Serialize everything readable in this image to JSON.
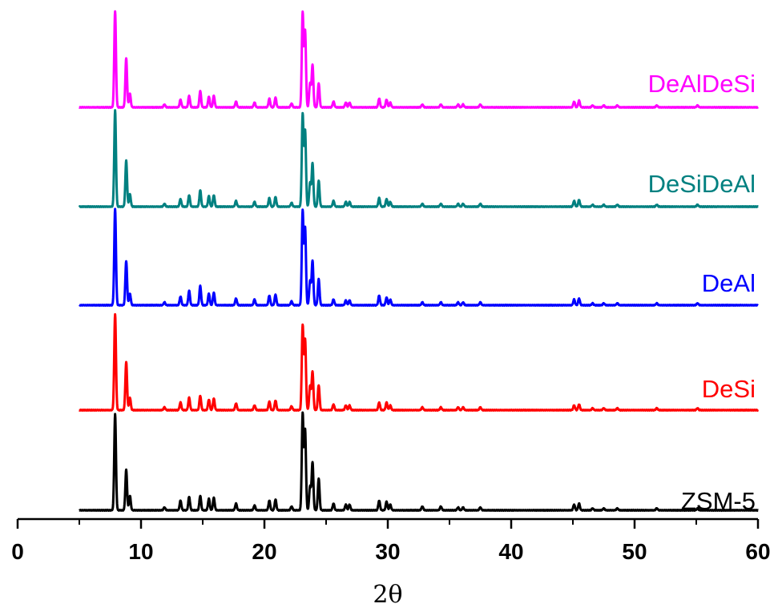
{
  "chart_data": {
    "type": "line",
    "title": "",
    "xlabel": "2θ",
    "ylabel": "",
    "xlim": [
      0,
      60
    ],
    "x_ticks": [
      0,
      10,
      20,
      30,
      40,
      50,
      60
    ],
    "x_tick_labels": [
      "0",
      "10",
      "20",
      "30",
      "40",
      "50",
      "60"
    ],
    "y_axis_shown": false,
    "grid": false,
    "legend": "labels placed at right end of each trace",
    "data_x_range": [
      5,
      60
    ],
    "peaks_2theta": [
      7.9,
      8.8,
      9.1,
      11.9,
      13.2,
      13.9,
      14.8,
      15.5,
      15.9,
      17.7,
      19.2,
      20.4,
      20.9,
      22.2,
      23.1,
      23.3,
      23.7,
      23.9,
      24.4,
      25.6,
      26.6,
      26.9,
      29.3,
      29.9,
      30.2,
      32.8,
      34.3,
      35.7,
      36.1,
      37.5,
      45.1,
      45.5,
      46.6,
      47.5,
      48.6,
      51.8,
      55.1
    ],
    "series": [
      {
        "name": "ZSM-5",
        "color": "#000000",
        "peak_intensities": [
          1.0,
          0.42,
          0.15,
          0.03,
          0.1,
          0.14,
          0.15,
          0.12,
          0.13,
          0.07,
          0.05,
          0.1,
          0.11,
          0.04,
          1.0,
          0.83,
          0.25,
          0.5,
          0.33,
          0.07,
          0.06,
          0.06,
          0.1,
          0.09,
          0.06,
          0.04,
          0.04,
          0.03,
          0.03,
          0.03,
          0.06,
          0.07,
          0.02,
          0.02,
          0.02,
          0.02,
          0.02
        ]
      },
      {
        "name": "DeSi",
        "color": "#ff0000",
        "peak_intensities": [
          1.0,
          0.5,
          0.13,
          0.03,
          0.08,
          0.13,
          0.15,
          0.11,
          0.12,
          0.07,
          0.05,
          0.09,
          0.1,
          0.04,
          0.88,
          0.73,
          0.25,
          0.4,
          0.26,
          0.06,
          0.05,
          0.05,
          0.08,
          0.08,
          0.05,
          0.03,
          0.03,
          0.03,
          0.03,
          0.03,
          0.05,
          0.06,
          0.02,
          0.02,
          0.02,
          0.02,
          0.02
        ]
      },
      {
        "name": "DeAl",
        "color": "#0000ff",
        "peak_intensities": [
          1.0,
          0.46,
          0.12,
          0.03,
          0.09,
          0.15,
          0.2,
          0.12,
          0.13,
          0.07,
          0.06,
          0.1,
          0.11,
          0.04,
          0.98,
          0.8,
          0.25,
          0.46,
          0.27,
          0.06,
          0.05,
          0.05,
          0.1,
          0.08,
          0.06,
          0.03,
          0.03,
          0.03,
          0.03,
          0.03,
          0.06,
          0.07,
          0.02,
          0.02,
          0.02,
          0.02,
          0.02
        ]
      },
      {
        "name": "DeSiDeAl",
        "color": "#008080",
        "peak_intensities": [
          1.0,
          0.48,
          0.13,
          0.03,
          0.08,
          0.12,
          0.17,
          0.11,
          0.12,
          0.06,
          0.05,
          0.09,
          0.1,
          0.04,
          0.96,
          0.79,
          0.25,
          0.45,
          0.27,
          0.06,
          0.05,
          0.05,
          0.09,
          0.08,
          0.05,
          0.03,
          0.03,
          0.03,
          0.03,
          0.03,
          0.06,
          0.07,
          0.02,
          0.02,
          0.02,
          0.02,
          0.02
        ]
      },
      {
        "name": "DeAlDeSi",
        "color": "#ff00ff",
        "peak_intensities": [
          1.0,
          0.51,
          0.14,
          0.03,
          0.08,
          0.12,
          0.17,
          0.11,
          0.12,
          0.06,
          0.05,
          0.09,
          0.1,
          0.04,
          0.98,
          0.79,
          0.25,
          0.44,
          0.25,
          0.06,
          0.05,
          0.05,
          0.09,
          0.08,
          0.05,
          0.03,
          0.03,
          0.03,
          0.03,
          0.03,
          0.06,
          0.07,
          0.02,
          0.02,
          0.02,
          0.02,
          0.02
        ]
      }
    ]
  }
}
